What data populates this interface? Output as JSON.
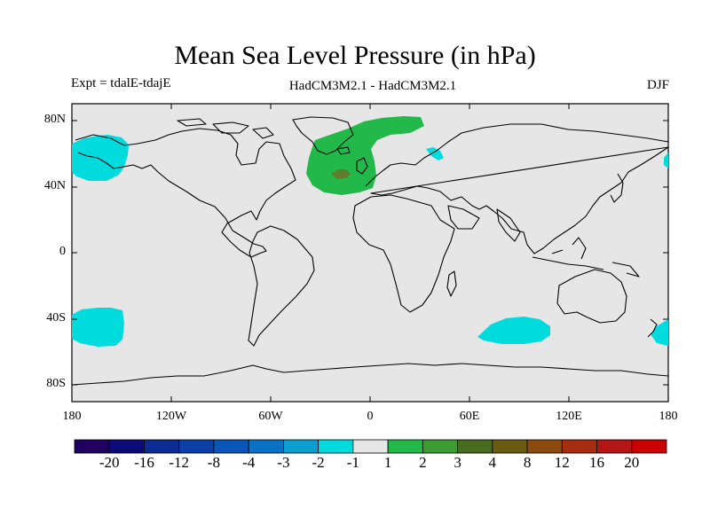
{
  "title": "Mean Sea Level Pressure (in hPa)",
  "subtitle_left": "Expt = tdalE-tdajE",
  "subtitle_center": "HadCM3M2.1 - HadCM3M2.1",
  "subtitle_right": "DJF",
  "y_axis": {
    "ticks": [
      "80N",
      "40N",
      "0",
      "40S",
      "80S"
    ],
    "values": [
      80,
      40,
      0,
      -40,
      -80
    ]
  },
  "x_axis": {
    "ticks": [
      "180",
      "120W",
      "60W",
      "0",
      "60E",
      "120E",
      "180"
    ],
    "values": [
      -180,
      -120,
      -60,
      0,
      60,
      120,
      180
    ]
  },
  "colorbar": {
    "labels": [
      "-20",
      "-16",
      "-12",
      "-8",
      "-4",
      "-3",
      "-2",
      "-1",
      "1",
      "2",
      "3",
      "4",
      "8",
      "12",
      "16",
      "20"
    ],
    "colors": [
      "#200060",
      "#0b0b7a",
      "#0b2c93",
      "#0a3fa7",
      "#0a56b8",
      "#0a72c5",
      "#0a9fd0",
      "#00dcde",
      "#e6e6e6",
      "#22b84a",
      "#3c9b32",
      "#476c1f",
      "#6b5b12",
      "#8c4a0f",
      "#a62d10",
      "#b51515",
      "#cc0000"
    ]
  },
  "colors": {
    "background": "#e6e6e6",
    "negative": "#00dcde",
    "positive": "#22b84a",
    "strong_positive": "#5f7d2a",
    "coast": "#000000"
  }
}
